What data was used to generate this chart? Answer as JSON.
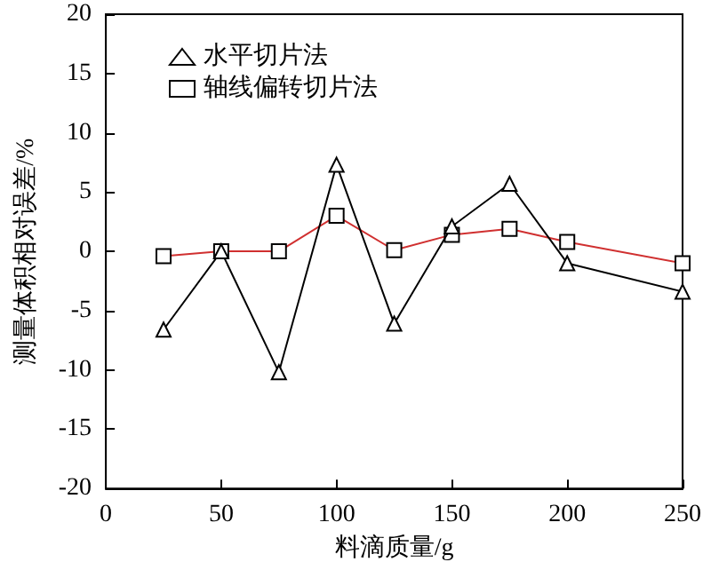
{
  "chart_data": {
    "type": "line",
    "xlabel": "料滴质量/g",
    "ylabel": "测量体积相对误差/%",
    "x": [
      25,
      50,
      75,
      100,
      125,
      150,
      175,
      200,
      250
    ],
    "series": [
      {
        "name": "水平切片法",
        "color": "#000000",
        "marker": "triangle",
        "values": [
          -6.6,
          0,
          -10.2,
          7.3,
          -6.1,
          2.1,
          5.7,
          -1,
          -3.4
        ]
      },
      {
        "name": "轴线偏转切片法",
        "color": "#d03030",
        "marker": "square",
        "values": [
          -0.4,
          0,
          0,
          3,
          0.1,
          1.4,
          1.9,
          0.8,
          -1
        ]
      }
    ],
    "xlim": [
      0,
      250
    ],
    "xticks": [
      0,
      50,
      100,
      150,
      200,
      250
    ],
    "ylim": [
      -20,
      20
    ],
    "yticks": [
      -20,
      -15,
      -10,
      -5,
      0,
      5,
      10,
      15,
      20
    ],
    "grid": false,
    "legend": "top left",
    "line_style": "solid"
  }
}
